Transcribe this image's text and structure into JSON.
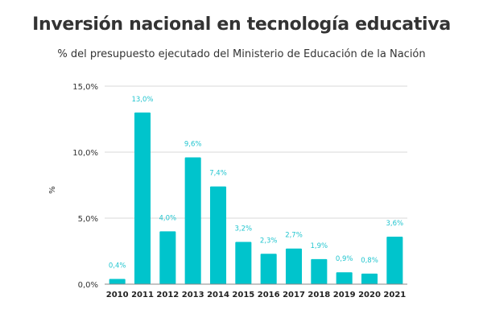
{
  "chart_data": {
    "type": "bar",
    "title": "Inversión nacional en tecnología educativa",
    "subtitle": "% del presupuesto ejecutado del  Ministerio de Educación de la Nación",
    "xlabel": "",
    "ylabel": "%",
    "categories": [
      "2010",
      "2011",
      "2012",
      "2013",
      "2014",
      "2015",
      "2016",
      "2017",
      "2018",
      "2019",
      "2020",
      "2021"
    ],
    "values": [
      0.4,
      13.0,
      4.0,
      9.6,
      7.4,
      3.2,
      2.3,
      2.7,
      1.9,
      0.9,
      0.8,
      3.6
    ],
    "data_labels": [
      "0,4%",
      "13,0%",
      "4,0%",
      "9,6%",
      "7,4%",
      "3,2%",
      "2,3%",
      "2,7%",
      "1,9%",
      "0,9%",
      "0,8%",
      "3,6%"
    ],
    "ylim": [
      0,
      15
    ],
    "yticks": [
      0,
      5,
      10,
      15
    ],
    "ytick_labels": [
      "0,0%",
      "5,0%",
      "10,0%",
      "15,0%"
    ],
    "grid": true,
    "legend": "none",
    "colors": {
      "bar": "#00c4cc",
      "label": "#22c5cf",
      "grid": "#d9d9d9"
    }
  }
}
